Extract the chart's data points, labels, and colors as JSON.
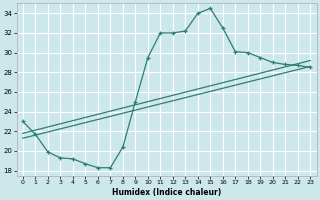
{
  "xlabel": "Humidex (Indice chaleur)",
  "bg_color": "#cde8eb",
  "grid_color": "#ffffff",
  "line_color": "#2e7d72",
  "xlim": [
    -0.5,
    23.5
  ],
  "ylim": [
    17.5,
    35.0
  ],
  "xticks": [
    0,
    1,
    2,
    3,
    4,
    5,
    6,
    7,
    8,
    9,
    10,
    11,
    12,
    13,
    14,
    15,
    16,
    17,
    18,
    19,
    20,
    21,
    22,
    23
  ],
  "yticks": [
    18,
    20,
    22,
    24,
    26,
    28,
    30,
    32,
    34
  ],
  "main_x": [
    0,
    1,
    2,
    3,
    4,
    5,
    6,
    7,
    8,
    9,
    10,
    11,
    12,
    13,
    14,
    15,
    16,
    17,
    18,
    19,
    20,
    21,
    22,
    23
  ],
  "main_y": [
    23.0,
    21.7,
    19.9,
    19.3,
    19.2,
    18.7,
    18.3,
    18.3,
    20.4,
    25.0,
    29.5,
    32.0,
    32.0,
    32.2,
    34.0,
    34.5,
    32.5,
    30.1,
    30.0,
    29.5,
    29.0,
    28.8,
    28.7,
    28.5
  ],
  "line2_x": [
    0,
    23
  ],
  "line2_y": [
    21.8,
    29.2
  ],
  "line3_x": [
    0,
    23
  ],
  "line3_y": [
    21.3,
    28.6
  ]
}
